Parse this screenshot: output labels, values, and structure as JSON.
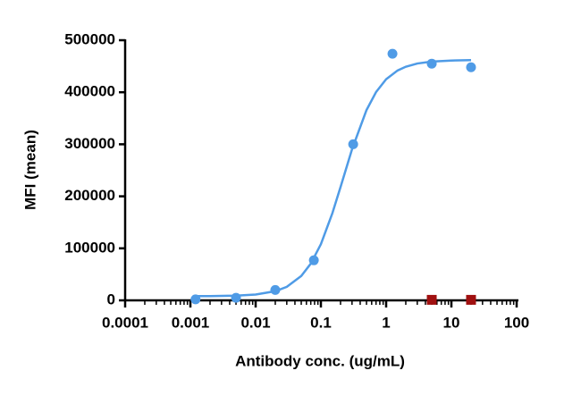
{
  "chart_data": {
    "type": "scatter",
    "x_label": "Antibody conc. (ug/mL)",
    "y_label": "MFI (mean)",
    "x_scale": "log",
    "xlim": [
      0.0001,
      100
    ],
    "xticks": [
      0.0001,
      0.001,
      0.01,
      0.1,
      1,
      10,
      100
    ],
    "minor_ticks": true,
    "ylim": [
      0,
      500000
    ],
    "yticks": [
      0,
      100000,
      200000,
      300000,
      400000,
      500000
    ],
    "series": [
      {
        "color": "#4f9be6",
        "marker": "circle",
        "x": [
          0.0012,
          0.005,
          0.02,
          0.078,
          0.3125,
          1.25,
          5,
          20
        ],
        "values": [
          2000,
          5000,
          20000,
          77000,
          300000,
          474000,
          455000,
          448000
        ]
      },
      {
        "color": "#a01010",
        "marker": "square",
        "x": [
          5,
          20
        ],
        "values": [
          1000,
          1000
        ]
      }
    ],
    "fit": {
      "color": "#4f9be6",
      "x": [
        0.0012,
        0.002,
        0.005,
        0.01,
        0.02,
        0.03,
        0.05,
        0.07,
        0.1,
        0.15,
        0.2,
        0.3,
        0.5,
        0.7,
        1,
        1.5,
        2,
        3,
        5,
        10,
        20
      ],
      "values": [
        8100,
        8250,
        9060,
        11200,
        17600,
        26000,
        46800,
        70600,
        108000,
        167500,
        217800,
        290300,
        365800,
        400300,
        425000,
        441900,
        449100,
        455200,
        459000,
        461000,
        461700
      ]
    }
  }
}
